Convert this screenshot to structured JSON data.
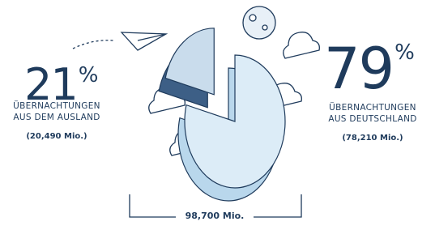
{
  "chart_data": {
    "type": "pie",
    "categories": [
      "ÜBERNACHTUNGEN AUS DEM AUSLAND",
      "ÜBERNACHTUNGEN AUS DEUTSCHLAND"
    ],
    "values": [
      21,
      79
    ],
    "value_labels": [
      "21%",
      "79%"
    ],
    "amount_labels": [
      "(20,490 Mio.)",
      "(78,210 Mio.)"
    ],
    "total_label": "98,700 Mio.",
    "colors": [
      "#c9dcec",
      "#dcecf7"
    ]
  }
}
